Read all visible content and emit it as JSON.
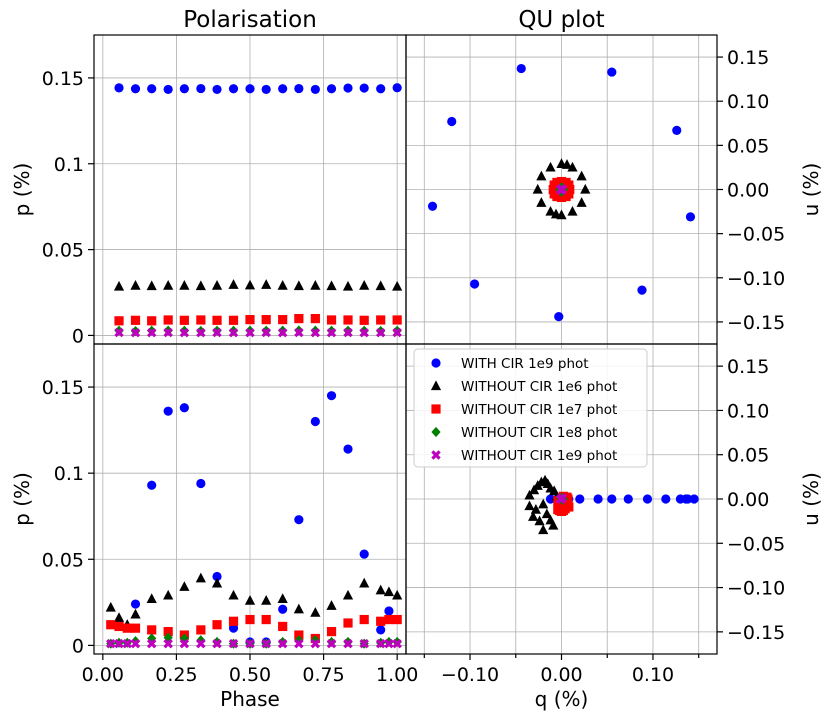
{
  "chart_data": [
    {
      "id": "top-left",
      "type": "scatter",
      "title": "Polarisation",
      "xlabel": "",
      "ylabel": "p (%)",
      "xlim": [
        -0.03,
        1.03
      ],
      "ylim": [
        -0.005,
        0.175
      ],
      "xticks": [],
      "yticks": [
        {
          "v": 0,
          "label": "0"
        },
        {
          "v": 0.05,
          "label": "0.05"
        },
        {
          "v": 0.1,
          "label": "0.1"
        },
        {
          "v": 0.15,
          "label": "0.15"
        }
      ],
      "xgrid": [
        0,
        0.25,
        0.5,
        0.75,
        1.0
      ],
      "yaxis_side": "left",
      "grid": true,
      "series": [
        {
          "name": "WITH CIR 1e9 phot",
          "marker": "circle",
          "color": "#0000ff",
          "x": [
            0.055,
            0.111,
            0.166,
            0.222,
            0.277,
            0.333,
            0.388,
            0.444,
            0.5,
            0.555,
            0.611,
            0.666,
            0.722,
            0.777,
            0.833,
            0.888,
            0.944,
            1.0
          ],
          "y": [
            0.1442,
            0.1437,
            0.1437,
            0.1433,
            0.1437,
            0.1438,
            0.1433,
            0.1437,
            0.1437,
            0.1433,
            0.1437,
            0.1438,
            0.1433,
            0.1437,
            0.1441,
            0.1441,
            0.1437,
            0.1443
          ]
        },
        {
          "name": "WITHOUT CIR 1e6 phot",
          "marker": "triangle",
          "color": "#000000",
          "x": [
            0.055,
            0.111,
            0.166,
            0.222,
            0.277,
            0.333,
            0.388,
            0.444,
            0.5,
            0.555,
            0.611,
            0.666,
            0.722,
            0.777,
            0.833,
            0.888,
            0.944,
            1.0
          ],
          "y": [
            0.0285,
            0.029,
            0.0288,
            0.029,
            0.029,
            0.0288,
            0.029,
            0.0295,
            0.0292,
            0.0295,
            0.029,
            0.0288,
            0.029,
            0.0288,
            0.0285,
            0.029,
            0.0288,
            0.0285
          ]
        },
        {
          "name": "WITHOUT CIR 1e7 phot",
          "marker": "square",
          "color": "#ff0000",
          "x": [
            0.055,
            0.111,
            0.166,
            0.222,
            0.277,
            0.333,
            0.388,
            0.444,
            0.5,
            0.555,
            0.611,
            0.666,
            0.722,
            0.777,
            0.833,
            0.888,
            0.944,
            1.0
          ],
          "y": [
            0.0085,
            0.0088,
            0.0085,
            0.009,
            0.0088,
            0.009,
            0.0088,
            0.0088,
            0.0092,
            0.0092,
            0.0092,
            0.0098,
            0.0098,
            0.009,
            0.009,
            0.0088,
            0.009,
            0.009
          ]
        },
        {
          "name": "WITHOUT CIR 1e8 phot",
          "marker": "diamond",
          "color": "#008000",
          "x": [
            0.055,
            0.111,
            0.166,
            0.222,
            0.277,
            0.333,
            0.388,
            0.444,
            0.5,
            0.555,
            0.611,
            0.666,
            0.722,
            0.777,
            0.833,
            0.888,
            0.944,
            1.0
          ],
          "y": [
            0.0027,
            0.0025,
            0.0027,
            0.0028,
            0.0027,
            0.0026,
            0.0027,
            0.0027,
            0.0028,
            0.0027,
            0.0028,
            0.0029,
            0.0028,
            0.0027,
            0.0027,
            0.0027,
            0.0026,
            0.0027
          ]
        },
        {
          "name": "WITHOUT CIR 1e9 phot",
          "marker": "x",
          "color": "#bf00bf",
          "x": [
            0.055,
            0.111,
            0.166,
            0.222,
            0.277,
            0.333,
            0.388,
            0.444,
            0.5,
            0.555,
            0.611,
            0.666,
            0.722,
            0.777,
            0.833,
            0.888,
            0.944,
            1.0
          ],
          "y": [
            0.0017,
            0.0016,
            0.0016,
            0.0017,
            0.0016,
            0.0016,
            0.0017,
            0.0016,
            0.0016,
            0.0017,
            0.0016,
            0.0017,
            0.0016,
            0.0016,
            0.0017,
            0.0016,
            0.0016,
            0.0017
          ]
        }
      ]
    },
    {
      "id": "top-right",
      "type": "scatter",
      "title": "QU plot",
      "xlabel": "",
      "ylabel": "u (%)",
      "xlim": [
        -0.17,
        0.17
      ],
      "ylim": [
        -0.175,
        0.175
      ],
      "xticks": [],
      "yticks": [
        {
          "v": -0.15,
          "label": "−0.15"
        },
        {
          "v": -0.1,
          "label": "−0.10"
        },
        {
          "v": -0.05,
          "label": "−0.05"
        },
        {
          "v": 0,
          "label": "0.00"
        },
        {
          "v": 0.05,
          "label": "0.05"
        },
        {
          "v": 0.1,
          "label": "0.10"
        },
        {
          "v": 0.15,
          "label": "0.15"
        }
      ],
      "xgrid": [
        -0.15,
        -0.1,
        -0.05,
        0,
        0.05,
        0.1,
        0.15
      ],
      "yaxis_side": "right",
      "grid": true,
      "series": [
        {
          "name": "WITH CIR 1e9 phot",
          "marker": "circle",
          "color": "#0000ff",
          "x": [
            -0.044,
            0.055,
            0.126,
            0.141,
            0.088,
            -0.003,
            -0.095,
            -0.141,
            -0.12
          ],
          "y": [
            0.137,
            0.133,
            0.067,
            -0.031,
            -0.114,
            -0.144,
            -0.107,
            -0.019,
            0.077
          ]
        },
        {
          "name": "WITHOUT CIR 1e6 phot",
          "marker": "triangle",
          "color": "#000000",
          "x": [
            0.0,
            0.012,
            0.022,
            0.026,
            0.022,
            0.012,
            0.0,
            -0.012,
            -0.022,
            -0.026,
            -0.022,
            -0.012,
            0.006,
            -0.006
          ],
          "y": [
            0.029,
            0.025,
            0.015,
            0.0,
            -0.015,
            -0.025,
            -0.029,
            -0.025,
            -0.015,
            0.0,
            0.015,
            0.025,
            0.028,
            -0.028
          ]
        },
        {
          "name": "WITHOUT CIR 1e7 phot",
          "marker": "square",
          "color": "#ff0000",
          "x": [
            0.0,
            0.005,
            0.008,
            0.009,
            0.008,
            0.005,
            0.0,
            -0.005,
            -0.008,
            -0.009,
            -0.008,
            -0.005
          ],
          "y": [
            0.009,
            0.008,
            0.005,
            0.0,
            -0.005,
            -0.008,
            -0.009,
            -0.008,
            -0.005,
            0.0,
            0.005,
            0.008
          ]
        },
        {
          "name": "WITHOUT CIR 1e8 phot",
          "marker": "diamond",
          "color": "#008000",
          "x": [
            0.0,
            0.002,
            0.0,
            -0.002,
            0.001,
            -0.001
          ],
          "y": [
            0.0025,
            0.0,
            -0.0025,
            0.0,
            0.002,
            -0.002
          ]
        },
        {
          "name": "WITHOUT CIR 1e9 phot",
          "marker": "x",
          "color": "#bf00bf",
          "x": [
            0.0,
            0.001,
            -0.001,
            0.0
          ],
          "y": [
            0.001,
            0.0,
            0.0,
            -0.001
          ]
        }
      ]
    },
    {
      "id": "bottom-left",
      "type": "scatter",
      "title": "",
      "xlabel": "Phase",
      "ylabel": "p (%)",
      "xlim": [
        -0.03,
        1.03
      ],
      "ylim": [
        -0.005,
        0.175
      ],
      "xticks": [
        {
          "v": 0,
          "label": "0.00"
        },
        {
          "v": 0.25,
          "label": "0.25"
        },
        {
          "v": 0.5,
          "label": "0.50"
        },
        {
          "v": 0.75,
          "label": "0.75"
        },
        {
          "v": 1.0,
          "label": "1.00"
        }
      ],
      "yticks": [
        {
          "v": 0,
          "label": "0"
        },
        {
          "v": 0.05,
          "label": "0.05"
        },
        {
          "v": 0.1,
          "label": "0.1"
        },
        {
          "v": 0.15,
          "label": "0.15"
        }
      ],
      "xgrid": [
        0,
        0.25,
        0.5,
        0.75,
        1.0
      ],
      "yaxis_side": "left",
      "grid": true,
      "series": [
        {
          "name": "WITH CIR 1e9 phot",
          "marker": "circle",
          "color": "#0000ff",
          "x": [
            0.055,
            0.111,
            0.166,
            0.222,
            0.277,
            0.333,
            0.388,
            0.444,
            0.5,
            0.555,
            0.611,
            0.666,
            0.722,
            0.777,
            0.833,
            0.888,
            0.944,
            0.972
          ],
          "y": [
            0.012,
            0.024,
            0.093,
            0.136,
            0.138,
            0.094,
            0.04,
            0.01,
            0.002,
            0.002,
            0.021,
            0.073,
            0.13,
            0.145,
            0.114,
            0.053,
            0.009,
            0.02
          ]
        },
        {
          "name": "WITHOUT CIR 1e6 phot",
          "marker": "triangle",
          "color": "#000000",
          "x": [
            0.027,
            0.055,
            0.083,
            0.111,
            0.166,
            0.222,
            0.277,
            0.333,
            0.388,
            0.444,
            0.5,
            0.555,
            0.611,
            0.666,
            0.722,
            0.777,
            0.833,
            0.888,
            0.944,
            0.972,
            1.0
          ],
          "y": [
            0.022,
            0.016,
            0.012,
            0.018,
            0.027,
            0.029,
            0.034,
            0.039,
            0.036,
            0.029,
            0.026,
            0.026,
            0.027,
            0.021,
            0.019,
            0.023,
            0.029,
            0.036,
            0.032,
            0.031,
            0.029
          ]
        },
        {
          "name": "WITHOUT CIR 1e7 phot",
          "marker": "square",
          "color": "#ff0000",
          "x": [
            0.027,
            0.055,
            0.083,
            0.111,
            0.166,
            0.222,
            0.277,
            0.333,
            0.388,
            0.444,
            0.5,
            0.555,
            0.611,
            0.666,
            0.722,
            0.777,
            0.833,
            0.888,
            0.944,
            0.972,
            1.0
          ],
          "y": [
            0.012,
            0.011,
            0.01,
            0.01,
            0.009,
            0.008,
            0.006,
            0.009,
            0.012,
            0.014,
            0.015,
            0.015,
            0.011,
            0.006,
            0.004,
            0.008,
            0.013,
            0.015,
            0.014,
            0.015,
            0.015
          ]
        },
        {
          "name": "WITHOUT CIR 1e8 phot",
          "marker": "diamond",
          "color": "#008000",
          "x": [
            0.027,
            0.055,
            0.083,
            0.111,
            0.166,
            0.222,
            0.277,
            0.333,
            0.388,
            0.444,
            0.5,
            0.555,
            0.611,
            0.666,
            0.722,
            0.777,
            0.833,
            0.888,
            0.944,
            0.972,
            1.0
          ],
          "y": [
            0.001,
            0.0015,
            0.0015,
            0.0025,
            0.004,
            0.0045,
            0.004,
            0.003,
            0.002,
            0.001,
            0.001,
            0.001,
            0.002,
            0.003,
            0.003,
            0.002,
            0.002,
            0.001,
            0.0015,
            0.002,
            0.002
          ]
        },
        {
          "name": "WITHOUT CIR 1e9 phot",
          "marker": "x",
          "color": "#bf00bf",
          "x": [
            0.027,
            0.055,
            0.083,
            0.111,
            0.166,
            0.222,
            0.277,
            0.333,
            0.388,
            0.444,
            0.5,
            0.555,
            0.611,
            0.666,
            0.722,
            0.777,
            0.833,
            0.888,
            0.944,
            0.972,
            1.0
          ],
          "y": [
            0.001,
            0.001,
            0.001,
            0.001,
            0.001,
            0.001,
            0.001,
            0.001,
            0.001,
            0.001,
            0.001,
            0.001,
            0.001,
            0.001,
            0.001,
            0.001,
            0.001,
            0.001,
            0.001,
            0.001,
            0.001
          ]
        }
      ]
    },
    {
      "id": "bottom-right",
      "type": "scatter",
      "title": "",
      "xlabel": "q (%)",
      "ylabel": "u (%)",
      "xlim": [
        -0.17,
        0.17
      ],
      "ylim": [
        -0.175,
        0.175
      ],
      "xticks": [
        {
          "v": -0.1,
          "label": "−0.10"
        },
        {
          "v": 0,
          "label": "0.00"
        },
        {
          "v": 0.1,
          "label": "0.10"
        }
      ],
      "xminor": [
        -0.15,
        -0.05,
        0.05,
        0.15
      ],
      "yticks": [
        {
          "v": -0.15,
          "label": "−0.15"
        },
        {
          "v": -0.1,
          "label": "−0.10"
        },
        {
          "v": -0.05,
          "label": "−0.05"
        },
        {
          "v": 0,
          "label": "0.00"
        },
        {
          "v": 0.05,
          "label": "0.05"
        },
        {
          "v": 0.1,
          "label": "0.10"
        },
        {
          "v": 0.15,
          "label": "0.15"
        }
      ],
      "xgrid": [
        -0.15,
        -0.1,
        -0.05,
        0,
        0.05,
        0.1,
        0.15
      ],
      "yaxis_side": "right",
      "grid": true,
      "legend": "top-left",
      "series": [
        {
          "name": "WITH CIR 1e9 phot",
          "marker": "circle",
          "color": "#0000ff",
          "x": [
            -0.012,
            -0.003,
            0.002,
            0.008,
            0.02,
            0.04,
            0.055,
            0.073,
            0.094,
            0.114,
            0.13,
            0.136,
            0.138,
            0.145
          ],
          "y": [
            0.0,
            0.0,
            0.0,
            0.0,
            0.0,
            0.0,
            0.0,
            0.0,
            0.0,
            0.0,
            0.0,
            0.0,
            0.0,
            0.0
          ]
        },
        {
          "name": "WITHOUT CIR 1e6 phot",
          "marker": "triangle",
          "color": "#000000",
          "x": [
            -0.035,
            -0.03,
            -0.026,
            -0.022,
            -0.018,
            -0.015,
            -0.012,
            -0.008,
            -0.005,
            -0.02,
            -0.028,
            -0.031,
            -0.035,
            -0.012,
            -0.003,
            -0.016,
            -0.024,
            -0.009,
            0.002,
            -0.02
          ],
          "y": [
            0.004,
            0.01,
            0.015,
            0.019,
            0.021,
            0.017,
            0.012,
            0.009,
            0.003,
            -0.006,
            -0.012,
            -0.02,
            -0.008,
            -0.024,
            -0.012,
            -0.017,
            -0.025,
            -0.03,
            -0.003,
            -0.035
          ]
        },
        {
          "name": "WITHOUT CIR 1e7 phot",
          "marker": "square",
          "color": "#ff0000",
          "x": [
            -0.004,
            -0.002,
            0.0,
            0.002,
            0.004,
            0.005,
            0.006,
            0.007,
            0.005,
            0.003,
            0.0,
            -0.003,
            0.008,
            0.006,
            0.002,
            -0.004
          ],
          "y": [
            -0.012,
            -0.013,
            -0.014,
            -0.013,
            -0.011,
            -0.008,
            -0.004,
            0.0,
            -0.006,
            -0.01,
            -0.008,
            -0.005,
            -0.009,
            0.002,
            0.003,
            -0.002
          ]
        },
        {
          "name": "WITHOUT CIR 1e8 phot",
          "marker": "diamond",
          "color": "#008000",
          "x": [
            0.0,
            0.001,
            0.002,
            0.001,
            -0.001
          ],
          "y": [
            0.0,
            0.001,
            0.0,
            -0.001,
            0.001
          ]
        },
        {
          "name": "WITHOUT CIR 1e9 phot",
          "marker": "x",
          "color": "#bf00bf",
          "x": [
            0.0,
            0.001,
            -0.001
          ],
          "y": [
            0.0,
            0.001,
            0.0
          ]
        }
      ]
    }
  ],
  "legend": {
    "items": [
      {
        "label": "WITH CIR 1e9 phot",
        "marker": "circle",
        "color": "#0000ff"
      },
      {
        "label": "WITHOUT CIR 1e6 phot",
        "marker": "triangle",
        "color": "#000000"
      },
      {
        "label": "WITHOUT CIR 1e7 phot",
        "marker": "square",
        "color": "#ff0000"
      },
      {
        "label": "WITHOUT CIR 1e8 phot",
        "marker": "diamond",
        "color": "#008000"
      },
      {
        "label": "WITHOUT CIR 1e9 phot",
        "marker": "x",
        "color": "#bf00bf"
      }
    ]
  }
}
